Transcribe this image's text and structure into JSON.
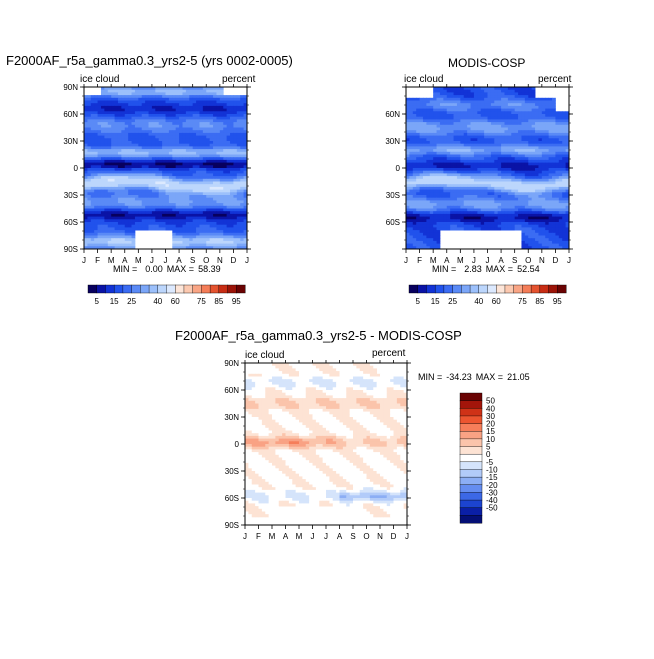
{
  "chart_data": [
    {
      "type": "heatmap",
      "title": "F2000AF_r5a_gamma0.3_yrs2-5 (yrs 0002-0005)",
      "variable_label": "ice cloud",
      "units_label": "percent",
      "x_ticks": [
        "J",
        "F",
        "M",
        "A",
        "M",
        "J",
        "J",
        "A",
        "S",
        "O",
        "N",
        "D",
        "J"
      ],
      "y_ticks": [
        "90N",
        "60N",
        "30N",
        "0",
        "30S",
        "60S",
        "90S"
      ],
      "stats": {
        "min_label": "MIN =",
        "min": "0.00",
        "max_label": "MAX =",
        "max": "58.39"
      },
      "colorbar": {
        "orientation": "horizontal",
        "levels": [
          5,
          10,
          15,
          20,
          25,
          30,
          35,
          40,
          50,
          60,
          65,
          70,
          75,
          80,
          85,
          90,
          95
        ],
        "tick_labels": [
          "5",
          "15",
          "25",
          "40",
          "60",
          "75",
          "85",
          "95"
        ]
      }
    },
    {
      "type": "heatmap",
      "title": "MODIS-COSP",
      "variable_label": "ice cloud",
      "units_label": "percent",
      "x_ticks": [
        "J",
        "F",
        "M",
        "A",
        "M",
        "J",
        "J",
        "A",
        "S",
        "O",
        "N",
        "D",
        "J"
      ],
      "y_ticks": [
        "60N",
        "30N",
        "0",
        "30S",
        "60S"
      ],
      "stats": {
        "min_label": "MIN =",
        "min": "2.83",
        "max_label": "MAX =",
        "max": "52.54"
      },
      "colorbar": {
        "orientation": "horizontal",
        "levels": [
          5,
          10,
          15,
          20,
          25,
          30,
          35,
          40,
          50,
          60,
          65,
          70,
          75,
          80,
          85,
          90,
          95
        ],
        "tick_labels": [
          "5",
          "15",
          "25",
          "40",
          "60",
          "75",
          "85",
          "95"
        ]
      }
    },
    {
      "type": "heatmap",
      "title": "F2000AF_r5a_gamma0.3_yrs2-5 - MODIS-COSP",
      "variable_label": "ice cloud",
      "units_label": "percent",
      "x_ticks": [
        "J",
        "F",
        "M",
        "A",
        "M",
        "J",
        "J",
        "A",
        "S",
        "O",
        "N",
        "D",
        "J"
      ],
      "y_ticks": [
        "90N",
        "60N",
        "30N",
        "0",
        "30S",
        "60S",
        "90S"
      ],
      "stats": {
        "min_label": "MIN =",
        "min": "-34.23",
        "max_label": "MAX =",
        "max": "21.05"
      },
      "colorbar": {
        "orientation": "vertical",
        "tick_labels": [
          "50",
          "40",
          "30",
          "20",
          "15",
          "10",
          "5",
          "0",
          "-5",
          "-10",
          "-15",
          "-20",
          "-30",
          "-40",
          "-50"
        ]
      }
    }
  ],
  "colors": {
    "seq": [
      "#08005e",
      "#0a13a6",
      "#1233d6",
      "#2152ec",
      "#3b6cf3",
      "#5a8af6",
      "#7ba6f8",
      "#9cc0fb",
      "#bcd6fc",
      "#dce9fe",
      "#fde5d8",
      "#fcc9b0",
      "#f9a585",
      "#f47d58",
      "#e4532f",
      "#c82d14",
      "#9c1408",
      "#6a0303"
    ],
    "div": [
      "#6a0303",
      "#a3150a",
      "#cf3217",
      "#ec5530",
      "#f67e5a",
      "#f9a284",
      "#fbc4ab",
      "#fde3d4",
      "#ffffff",
      "#d5e4fb",
      "#b2cbf9",
      "#8caef5",
      "#658df0",
      "#3c68e6",
      "#1c44d0",
      "#0a1fa6",
      "#040f75"
    ]
  }
}
